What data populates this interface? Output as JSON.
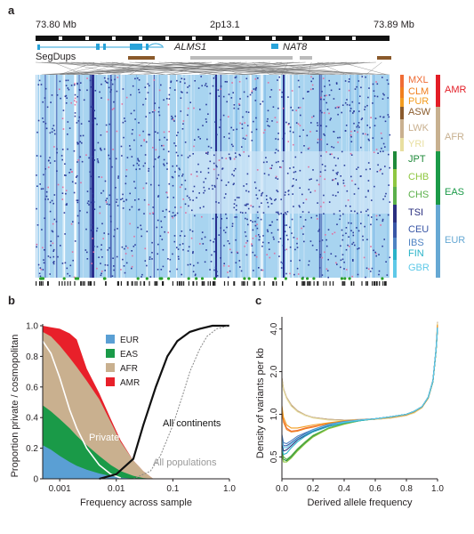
{
  "panels": {
    "a": "a",
    "b": "b",
    "c": "c"
  },
  "panel_a": {
    "left_coord": "73.80 Mb",
    "band": "2p13.1",
    "right_coord": "73.89 Mb",
    "gene1": "ALMS1",
    "gene2": "NAT8",
    "segdups": "SegDups",
    "populations": [
      {
        "code": "MXL",
        "color": "#ef6c35"
      },
      {
        "code": "CLM",
        "color": "#f07f1e"
      },
      {
        "code": "PUR",
        "color": "#f39c1f"
      },
      {
        "code": "ASW",
        "color": "#8a5a2b"
      },
      {
        "code": "LWK",
        "color": "#c9b08f"
      },
      {
        "code": "YRI",
        "color": "#e8dfa0"
      },
      {
        "code": "JPT",
        "color": "#1f8a3a"
      },
      {
        "code": "CHB",
        "color": "#8fc741"
      },
      {
        "code": "CHS",
        "color": "#5bb04a"
      },
      {
        "code": "TSI",
        "color": "#2a2f7f"
      },
      {
        "code": "CEU",
        "color": "#3956a6"
      },
      {
        "code": "IBS",
        "color": "#4f83c3"
      },
      {
        "code": "FIN",
        "color": "#2ab3c8"
      },
      {
        "code": "GBR",
        "color": "#5fc9e8"
      }
    ],
    "continents": [
      {
        "code": "AMR",
        "color": "#e31d26"
      },
      {
        "code": "AFR",
        "color": "#c7b08f"
      },
      {
        "code": "EAS",
        "color": "#1b9a48"
      },
      {
        "code": "EUR",
        "color": "#66a8d3"
      }
    ]
  },
  "chart_data": [
    {
      "type": "area",
      "panel": "b",
      "ylabel": "Proportion private / cosmopolitan",
      "xlabel": "Frequency across sample",
      "x_scale": "log",
      "xticks": [
        "0.001",
        "0.01",
        "0.1",
        "1.0"
      ],
      "yticks": [
        "0",
        "0.2",
        "0.4",
        "0.6",
        "0.8",
        "1.0"
      ],
      "ylim": [
        0,
        1
      ],
      "xlim": [
        0.0005,
        1.0
      ],
      "legend": [
        "EUR",
        "EAS",
        "AFR",
        "AMR"
      ],
      "legend_position": "top-left",
      "colors": {
        "EUR": "#5a9fd4",
        "EAS": "#1a9a48",
        "AFR": "#c9b08f",
        "AMR": "#e8202a"
      },
      "annotations": [
        "Private",
        "All continents",
        "All populations"
      ],
      "x": [
        0.0005,
        0.0007,
        0.001,
        0.0015,
        0.002,
        0.003,
        0.005,
        0.008,
        0.012,
        0.02,
        0.03,
        0.045
      ],
      "series": [
        {
          "name": "EUR",
          "values": [
            0.22,
            0.19,
            0.15,
            0.11,
            0.085,
            0.06,
            0.035,
            0.018,
            0.008,
            0.002,
            0.0,
            0.0
          ]
        },
        {
          "name": "EAS",
          "values": [
            0.48,
            0.44,
            0.39,
            0.33,
            0.28,
            0.22,
            0.15,
            0.09,
            0.05,
            0.02,
            0.005,
            0.0
          ]
        },
        {
          "name": "AFR",
          "values": [
            0.96,
            0.93,
            0.87,
            0.79,
            0.73,
            0.64,
            0.52,
            0.37,
            0.24,
            0.12,
            0.05,
            0.0
          ]
        },
        {
          "name": "AMR",
          "values": [
            1.0,
            0.99,
            0.98,
            0.95,
            0.91,
            0.72,
            0.56,
            0.39,
            0.25,
            0.12,
            0.05,
            0.0
          ]
        }
      ],
      "lines": [
        {
          "name": "Private",
          "x": [
            0.0005,
            0.0007,
            0.001,
            0.0015,
            0.002,
            0.003,
            0.005,
            0.008,
            0.012
          ],
          "values": [
            0.9,
            0.82,
            0.66,
            0.45,
            0.33,
            0.2,
            0.09,
            0.03,
            0.005
          ]
        },
        {
          "name": "All continents",
          "x": [
            0.005,
            0.01,
            0.02,
            0.03,
            0.05,
            0.08,
            0.12,
            0.2,
            0.3,
            0.5,
            1.0
          ],
          "values": [
            0.0,
            0.03,
            0.13,
            0.35,
            0.6,
            0.8,
            0.9,
            0.96,
            0.98,
            1.0,
            1.0
          ]
        },
        {
          "name": "All populations",
          "x": [
            0.02,
            0.04,
            0.06,
            0.1,
            0.15,
            0.2,
            0.3,
            0.4,
            0.6,
            1.0
          ],
          "values": [
            0.0,
            0.05,
            0.15,
            0.35,
            0.55,
            0.7,
            0.85,
            0.93,
            0.98,
            1.0
          ]
        }
      ]
    },
    {
      "type": "line",
      "panel": "c",
      "ylabel": "Density of variants per kb",
      "xlabel": "Derived allele frequency",
      "xticks": [
        "0.0",
        "0.2",
        "0.4",
        "0.6",
        "0.8",
        "1.0"
      ],
      "yticks": [
        "0.5",
        "1.0",
        "2.0",
        "4.0"
      ],
      "y_scale": "log",
      "ylim": [
        0.35,
        4.6
      ],
      "xlim": [
        0,
        1
      ],
      "x": [
        0.0,
        0.01,
        0.03,
        0.06,
        0.1,
        0.15,
        0.2,
        0.3,
        0.4,
        0.5,
        0.6,
        0.7,
        0.8,
        0.85,
        0.9,
        0.94,
        0.97,
        0.99,
        1.0
      ],
      "series": [
        {
          "color": "#8a5a2b",
          "values": [
            1.8,
            1.5,
            1.3,
            1.15,
            1.05,
            0.98,
            0.95,
            0.92,
            0.91,
            0.91,
            0.92,
            0.94,
            0.98,
            1.03,
            1.12,
            1.3,
            1.7,
            2.8,
            4.3
          ]
        },
        {
          "color": "#c9b08f",
          "values": [
            1.8,
            1.52,
            1.32,
            1.17,
            1.06,
            0.99,
            0.95,
            0.92,
            0.91,
            0.92,
            0.93,
            0.95,
            0.99,
            1.04,
            1.13,
            1.32,
            1.75,
            2.9,
            4.5
          ]
        },
        {
          "color": "#e8dfa0",
          "values": [
            1.75,
            1.48,
            1.29,
            1.14,
            1.04,
            0.98,
            0.94,
            0.91,
            0.9,
            0.91,
            0.92,
            0.94,
            0.98,
            1.02,
            1.11,
            1.3,
            1.7,
            2.8,
            4.4
          ]
        },
        {
          "color": "#ef6c35",
          "values": [
            1.1,
            0.9,
            0.8,
            0.76,
            0.77,
            0.8,
            0.82,
            0.86,
            0.89,
            0.91,
            0.93,
            0.95,
            0.99,
            1.04,
            1.12,
            1.3,
            1.7,
            2.8,
            4.2
          ]
        },
        {
          "color": "#f07f1e",
          "values": [
            1.05,
            0.88,
            0.78,
            0.75,
            0.76,
            0.79,
            0.81,
            0.86,
            0.89,
            0.91,
            0.93,
            0.95,
            0.99,
            1.04,
            1.12,
            1.3,
            1.7,
            2.8,
            4.2
          ]
        },
        {
          "color": "#f39c1f",
          "values": [
            1.15,
            0.95,
            0.84,
            0.8,
            0.8,
            0.82,
            0.84,
            0.87,
            0.9,
            0.91,
            0.93,
            0.95,
            0.99,
            1.04,
            1.12,
            1.3,
            1.72,
            2.85,
            4.3
          ]
        },
        {
          "color": "#1f8a3a",
          "values": [
            0.55,
            0.48,
            0.47,
            0.5,
            0.56,
            0.63,
            0.7,
            0.8,
            0.86,
            0.9,
            0.93,
            0.96,
            1.0,
            1.05,
            1.13,
            1.31,
            1.7,
            2.8,
            4.0
          ]
        },
        {
          "color": "#8fc741",
          "values": [
            0.52,
            0.46,
            0.46,
            0.49,
            0.55,
            0.62,
            0.69,
            0.79,
            0.85,
            0.9,
            0.93,
            0.96,
            1.0,
            1.05,
            1.13,
            1.31,
            1.7,
            2.8,
            4.0
          ]
        },
        {
          "color": "#5bb04a",
          "values": [
            0.58,
            0.5,
            0.48,
            0.51,
            0.57,
            0.64,
            0.71,
            0.8,
            0.86,
            0.9,
            0.93,
            0.96,
            1.0,
            1.05,
            1.13,
            1.31,
            1.7,
            2.8,
            4.0
          ]
        },
        {
          "color": "#2a2f7f",
          "values": [
            0.62,
            0.55,
            0.56,
            0.6,
            0.66,
            0.71,
            0.76,
            0.83,
            0.88,
            0.91,
            0.93,
            0.96,
            1.0,
            1.05,
            1.13,
            1.32,
            1.72,
            2.85,
            4.1
          ]
        },
        {
          "color": "#3956a6",
          "values": [
            0.68,
            0.6,
            0.6,
            0.63,
            0.68,
            0.73,
            0.77,
            0.84,
            0.88,
            0.91,
            0.93,
            0.96,
            1.0,
            1.05,
            1.13,
            1.32,
            1.72,
            2.85,
            4.1
          ]
        },
        {
          "color": "#4f83c3",
          "values": [
            0.72,
            0.63,
            0.62,
            0.65,
            0.7,
            0.74,
            0.78,
            0.85,
            0.89,
            0.91,
            0.93,
            0.96,
            1.0,
            1.05,
            1.13,
            1.32,
            1.72,
            2.85,
            4.1
          ]
        },
        {
          "color": "#2ab3c8",
          "values": [
            0.58,
            0.52,
            0.53,
            0.58,
            0.64,
            0.7,
            0.75,
            0.82,
            0.87,
            0.9,
            0.93,
            0.96,
            1.0,
            1.05,
            1.13,
            1.32,
            1.72,
            2.85,
            4.1
          ]
        },
        {
          "color": "#5fc9e8",
          "values": [
            0.66,
            0.58,
            0.58,
            0.62,
            0.67,
            0.72,
            0.77,
            0.84,
            0.88,
            0.91,
            0.93,
            0.96,
            1.0,
            1.05,
            1.13,
            1.32,
            1.72,
            2.85,
            4.1
          ]
        }
      ]
    }
  ]
}
